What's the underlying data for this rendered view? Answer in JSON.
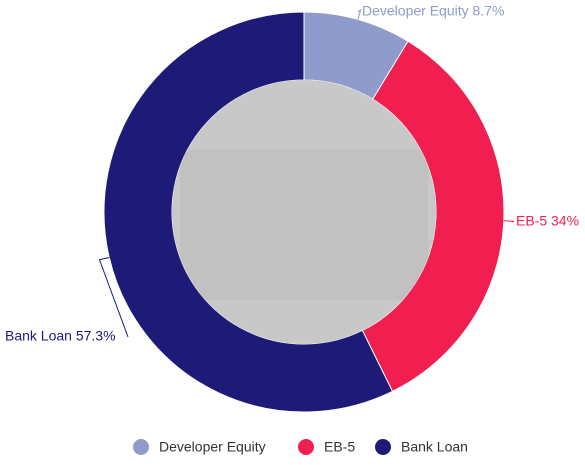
{
  "chart_data": {
    "type": "donut",
    "categories": [
      "Developer Equity",
      "EB-5",
      "Bank Loan"
    ],
    "values": [
      8.7,
      34,
      57.3
    ],
    "value_labels": [
      "Developer Equity 8.7%",
      "EB-5 34%",
      "Bank Loan 57.3%"
    ],
    "colors": [
      "#8e9bcb",
      "#f01f50",
      "#1e1a78"
    ],
    "legend": "bottom"
  }
}
